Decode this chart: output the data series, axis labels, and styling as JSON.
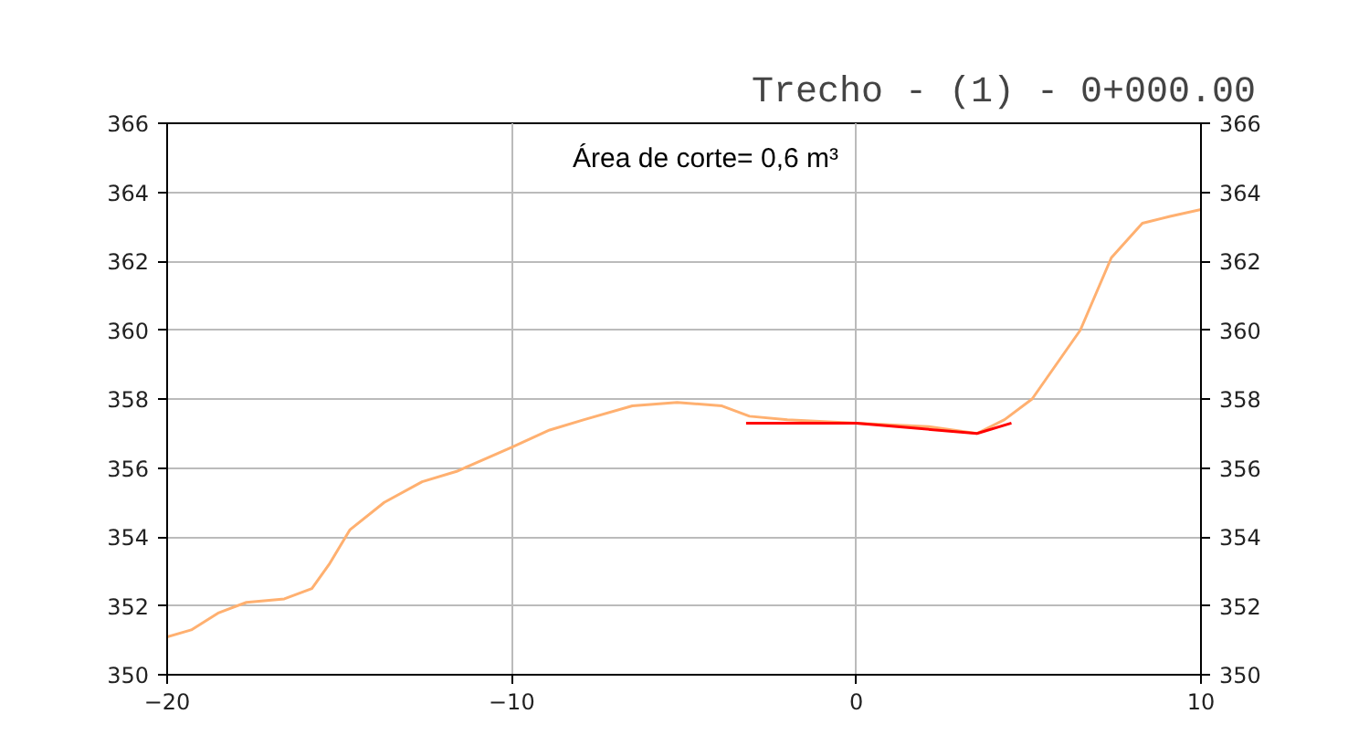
{
  "chart_data": {
    "type": "line",
    "title": "Trecho - (1) - 0+000.00",
    "annotations": [
      "Área de corte= 0,6 m³"
    ],
    "xlim": [
      -20,
      10
    ],
    "xticks": [
      -20,
      -10,
      0,
      10
    ],
    "ylim": [
      350,
      366
    ],
    "yticks": [
      350,
      352,
      354,
      356,
      358,
      360,
      362,
      364,
      366
    ],
    "y2lim": [
      350,
      366
    ],
    "y2ticks": [
      350,
      352,
      354,
      356,
      358,
      360,
      362,
      364,
      366
    ],
    "grid": true,
    "series": [
      {
        "color": "#ffb070",
        "x": [
          -20,
          -19.3,
          -18.5,
          -17.7,
          -16.6,
          -15.8,
          -15.3,
          -14.7,
          -13.7,
          -12.6,
          -11.6,
          -10,
          -8.9,
          -7.9,
          -6.5,
          -5.2,
          -3.9,
          -3.1,
          -2,
          0,
          2.1,
          3.5,
          4.3,
          5.1,
          6.5,
          7.4,
          8.3,
          9.1,
          10
        ],
        "values": [
          351.1,
          351.3,
          351.8,
          352.1,
          352.2,
          352.5,
          353.2,
          354.2,
          355,
          355.6,
          355.9,
          356.6,
          357.1,
          357.4,
          357.8,
          357.9,
          357.8,
          357.5,
          357.4,
          357.3,
          357.2,
          357,
          357.4,
          358,
          360,
          362.1,
          363.1,
          363.3,
          363.5
        ]
      },
      {
        "color": "#ff0000",
        "x": [
          -3.2,
          0,
          3.5,
          4.5
        ],
        "values": [
          357.3,
          357.3,
          357,
          357.3
        ]
      }
    ]
  }
}
